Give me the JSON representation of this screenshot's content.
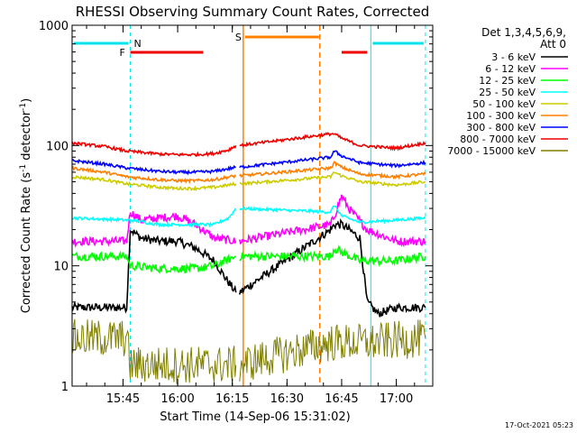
{
  "chart_data": {
    "type": "line",
    "title": "RHESSI Observing Summary Count Rates, Corrected",
    "xlabel": "Start Time (14-Sep-06 15:31:02)",
    "ylabel": "Corrected Count Rate (s⁻¹ detector⁻¹)",
    "ylabel_main": "Corrected Count Rate (s",
    "ylabel_exp1": "-1",
    "ylabel_mid": " detector",
    "ylabel_exp2": "-1",
    "ylabel_end": ")",
    "yscale": "log",
    "ylim": [
      1,
      1000
    ],
    "xlim": [
      "15:31:02",
      "17:10:00"
    ],
    "x_ticks": [
      "15:45",
      "16:00",
      "16:15",
      "16:30",
      "16:45",
      "17:00"
    ],
    "y_ticks": [
      "1",
      "10",
      "100",
      "1000"
    ],
    "legend_header": [
      "Det 1,3,4,5,6,9,",
      "Att 0"
    ],
    "legend_position": "top-right",
    "timestamp": "17-Oct-2021 05:23",
    "annotations": {
      "night": {
        "label": "N",
        "color": "#00e5ee",
        "intervals": [
          [
            "15:31",
            "15:47"
          ],
          [
            "16:53",
            "17:08"
          ]
        ]
      },
      "flare": {
        "label": "F",
        "color": "#ee0000",
        "intervals": [
          [
            "15:47",
            "16:07"
          ],
          [
            "16:45",
            "16:52"
          ]
        ]
      },
      "saa": {
        "label": "S",
        "color": "#ff8000",
        "intervals": [
          [
            "16:18",
            "16:39"
          ]
        ]
      }
    },
    "series": [
      {
        "name": "3 - 6 keV",
        "color": "#000000",
        "x": [
          "15:31",
          "15:46",
          "15:47",
          "15:50",
          "15:55",
          "16:00",
          "16:05",
          "16:10",
          "16:13",
          "16:16",
          "16:17",
          "16:42",
          "16:43",
          "16:45",
          "16:47",
          "16:50",
          "16:52",
          "16:55",
          "17:00",
          "17:08"
        ],
        "y": [
          4.5,
          4.5,
          20,
          17,
          16,
          16,
          14,
          11,
          8,
          6,
          6,
          20,
          22,
          22,
          20,
          17,
          5,
          4,
          4.5,
          4.5
        ]
      },
      {
        "name": "6 - 12 keV",
        "color": "#ff00ff",
        "x": [
          "15:31",
          "15:46",
          "15:47",
          "15:50",
          "15:55",
          "16:00",
          "16:05",
          "16:10",
          "16:16",
          "16:17",
          "16:42",
          "16:43",
          "16:45",
          "16:47",
          "16:52",
          "17:00",
          "17:08"
        ],
        "y": [
          16,
          16,
          28,
          24,
          25,
          26,
          22,
          17,
          16,
          16,
          22,
          26,
          38,
          30,
          20,
          16,
          16
        ]
      },
      {
        "name": "12 - 25 keV",
        "color": "#00ff00",
        "x": [
          "15:31",
          "15:46",
          "15:47",
          "15:55",
          "16:00",
          "16:05",
          "16:10",
          "16:16",
          "16:17",
          "16:42",
          "16:43",
          "16:45",
          "16:50",
          "17:00",
          "17:08"
        ],
        "y": [
          12,
          12,
          10,
          9.5,
          9.5,
          9.5,
          10,
          12,
          12,
          12,
          14,
          13,
          11,
          11,
          12
        ]
      },
      {
        "name": "25 - 50 keV",
        "color": "#00ffff",
        "x": [
          "15:31",
          "15:46",
          "15:47",
          "15:55",
          "16:00",
          "16:05",
          "16:10",
          "16:14",
          "16:16",
          "16:17",
          "16:42",
          "16:43",
          "16:45",
          "16:50",
          "17:00",
          "17:08"
        ],
        "y": [
          25,
          24,
          24,
          22,
          22,
          22,
          22,
          25,
          30,
          30,
          28,
          32,
          26,
          23,
          24,
          25
        ]
      },
      {
        "name": "50 - 100 keV",
        "color": "#cccc00",
        "x": [
          "15:31",
          "15:40",
          "15:46",
          "15:55",
          "16:00",
          "16:05",
          "16:10",
          "16:16",
          "16:17",
          "16:42",
          "16:43",
          "16:45",
          "16:50",
          "17:00",
          "17:08"
        ],
        "y": [
          55,
          52,
          48,
          45,
          44,
          44,
          45,
          48,
          48,
          55,
          60,
          56,
          50,
          47,
          50
        ]
      },
      {
        "name": "100 - 300 keV",
        "color": "#ff8000",
        "x": [
          "15:31",
          "15:40",
          "15:46",
          "15:55",
          "16:00",
          "16:05",
          "16:10",
          "16:16",
          "16:17",
          "16:42",
          "16:43",
          "16:45",
          "16:50",
          "17:00",
          "17:08"
        ],
        "y": [
          65,
          60,
          55,
          52,
          51,
          51,
          52,
          56,
          56,
          65,
          72,
          66,
          58,
          55,
          58
        ]
      },
      {
        "name": "300 - 800 keV",
        "color": "#0000ff",
        "x": [
          "15:31",
          "15:40",
          "15:46",
          "15:55",
          "16:00",
          "16:05",
          "16:10",
          "16:16",
          "16:17",
          "16:42",
          "16:43",
          "16:45",
          "16:50",
          "17:00",
          "17:08"
        ],
        "y": [
          75,
          70,
          65,
          61,
          60,
          60,
          61,
          66,
          66,
          80,
          90,
          82,
          72,
          68,
          72
        ]
      },
      {
        "name": "800 - 7000 keV",
        "color": "#ee0000",
        "x": [
          "15:31",
          "15:40",
          "15:46",
          "15:55",
          "16:00",
          "16:05",
          "16:10",
          "16:14",
          "16:16",
          "16:17",
          "16:42",
          "16:43",
          "16:45",
          "16:50",
          "17:00",
          "17:08"
        ],
        "y": [
          105,
          98,
          90,
          85,
          84,
          84,
          86,
          92,
          100,
          100,
          125,
          125,
          115,
          100,
          95,
          105
        ]
      },
      {
        "name": "7000 - 15000 keV",
        "color": "#808000",
        "x": [
          "15:31",
          "15:46",
          "15:47",
          "16:00",
          "16:16",
          "16:17",
          "16:42",
          "16:53",
          "17:00",
          "17:08"
        ],
        "y": [
          2.5,
          2.5,
          1.5,
          1.5,
          1.5,
          1.5,
          2.3,
          2.3,
          2.4,
          2.5
        ]
      }
    ]
  }
}
